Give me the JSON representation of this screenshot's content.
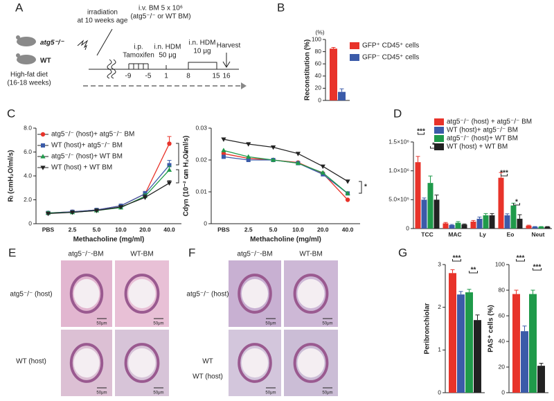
{
  "panel_labels": [
    "A",
    "B",
    "C",
    "D",
    "E",
    "F",
    "G"
  ],
  "schematic": {
    "irradiation": "irradiation",
    "irradiation_age": "at 10 weeks age",
    "iv": "i.v. BM 5 x 10⁶",
    "iv_note": "(atg5⁻/⁻ or WT BM)",
    "mouse_ko": "atg5⁻/⁻",
    "mouse_wt": "WT",
    "diet": "High-fat diet",
    "diet_duration": "(16-18 weeks)",
    "ip": "i.p.",
    "tamoxifen": "Tamoxifen",
    "hdm1": "i.n. HDM",
    "hdm1_dose": "50 μg",
    "hdm2": "i.n. HDM",
    "hdm2_dose": "10 μg",
    "harvest": "Harvest",
    "days": [
      "-9",
      "-5",
      "1",
      "8",
      "15",
      "16"
    ]
  },
  "chart_data": [
    {
      "type": "bar",
      "ylabel": "Reconstitution (%)",
      "unit_label": "(%)",
      "categories": [
        null
      ],
      "ylim": [
        0,
        100
      ],
      "yticks": [
        0,
        20,
        40,
        60,
        80,
        100
      ],
      "series": [
        {
          "name": "GFP⁺ CD45⁺ cells",
          "color": "#e8332a",
          "values": [
            85
          ],
          "errors": [
            2
          ]
        },
        {
          "name": "GFP⁻ CD45⁺ cells",
          "color": "#3b5ba9",
          "values": [
            14
          ],
          "errors": [
            5
          ]
        }
      ]
    },
    {
      "type": "line",
      "ylabel": "Rₗ (cmH₂O/ml/s)",
      "xlabel": "Methacholine (mg/ml)",
      "categories": [
        "PBS",
        "2.5",
        "5.0",
        "10.0",
        "20.0",
        "40.0"
      ],
      "ylim": [
        0,
        8
      ],
      "yticks": [
        0,
        {
          "value": 2,
          "label": "2.0"
        },
        {
          "value": 4,
          "label": "4.0"
        },
        {
          "value": 6,
          "label": "6.0"
        },
        {
          "value": 8,
          "label": "8.0"
        }
      ],
      "series": [
        {
          "name": "atg5⁻/⁻ (host)+ atg5⁻/⁻ BM",
          "color": "#e8332a",
          "marker": "circle",
          "values": [
            0.9,
            1.0,
            1.15,
            1.5,
            2.5,
            6.7
          ],
          "errors": [
            0.1,
            0.1,
            0.1,
            0.1,
            0.2,
            0.6
          ]
        },
        {
          "name": "WT (host)+ atg5⁻/⁻ BM",
          "color": "#3b5ba9",
          "marker": "square",
          "values": [
            0.9,
            1.0,
            1.15,
            1.5,
            2.5,
            4.9
          ],
          "errors": [
            0.1,
            0.1,
            0.1,
            0.1,
            0.2,
            0.4
          ]
        },
        {
          "name": "atg5⁻/⁻ (host)+ WT BM",
          "color": "#1f9a4a",
          "marker": "triangle-up",
          "values": [
            0.9,
            0.95,
            1.1,
            1.35,
            2.3,
            4.5
          ],
          "errors": [
            0.1,
            0.1,
            0.1,
            0.1,
            0.2,
            0.3
          ]
        },
        {
          "name": "WT (host) + WT BM",
          "color": "#222222",
          "marker": "triangle-down",
          "values": [
            0.85,
            0.95,
            1.1,
            1.4,
            2.2,
            3.4
          ],
          "errors": [
            0.1,
            0.1,
            0.1,
            0.1,
            0.2,
            0.2
          ]
        }
      ],
      "annotations": [
        "*",
        "*"
      ]
    },
    {
      "type": "line",
      "ylabel": "Cdyn (10⁻² cm H₂O/ml/s)",
      "xlabel": "Methacholine (mg/ml)",
      "categories": [
        "PBS",
        "2.5",
        "5.0",
        "10.0",
        "20.0",
        "40.0"
      ],
      "ylim": [
        0,
        0.03
      ],
      "yticks": [
        0,
        0.01,
        0.02,
        0.03
      ],
      "series": [
        {
          "color": "#e8332a",
          "marker": "circle",
          "values": [
            0.022,
            0.0205,
            0.02,
            0.0192,
            0.0158,
            0.0075
          ]
        },
        {
          "color": "#3b5ba9",
          "marker": "square",
          "values": [
            0.021,
            0.02,
            0.02,
            0.019,
            0.0155,
            0.0095
          ]
        },
        {
          "color": "#1f9a4a",
          "marker": "triangle-up",
          "values": [
            0.023,
            0.021,
            0.02,
            0.019,
            0.016,
            0.0095
          ]
        },
        {
          "color": "#222222",
          "marker": "triangle-down",
          "values": [
            0.0265,
            0.025,
            0.024,
            0.022,
            0.018,
            0.0133
          ]
        }
      ],
      "annotations": [
        "*"
      ]
    },
    {
      "type": "bar",
      "categories": [
        "TCC",
        "MAC",
        "Ly",
        "Eo",
        "Neut"
      ],
      "ylim": [
        0,
        1500000
      ],
      "yticks": [
        0,
        {
          "value": 500000,
          "label": "5.0×10⁵"
        },
        {
          "value": 1000000,
          "label": "1.0×10⁶"
        },
        {
          "value": 1500000,
          "label": "1.5×10⁶"
        }
      ],
      "series": [
        {
          "name": "atg5⁻/⁻ (host) + atg5⁻/⁻ BM",
          "color": "#e8332a",
          "values": [
            1150000,
            90000,
            120000,
            880000,
            50000
          ],
          "errors": [
            100000,
            15000,
            20000,
            90000,
            8000
          ]
        },
        {
          "name": "WT (host)+ atg5⁻/⁻ BM",
          "color": "#3b5ba9",
          "values": [
            500000,
            60000,
            170000,
            230000,
            30000
          ],
          "errors": [
            30000,
            10000,
            30000,
            25000,
            5000
          ]
        },
        {
          "name": "atg5⁻/⁻ (host)+ WT BM",
          "color": "#1f9a4a",
          "values": [
            790000,
            100000,
            230000,
            400000,
            30000
          ],
          "errors": [
            120000,
            20000,
            30000,
            40000,
            5000
          ]
        },
        {
          "name": "WT (host) + WT BM",
          "color": "#222222",
          "values": [
            500000,
            70000,
            230000,
            170000,
            30000
          ],
          "errors": [
            80000,
            10000,
            30000,
            70000,
            5000
          ]
        }
      ],
      "annotations": [
        "***",
        "*",
        "***",
        "*"
      ]
    },
    {
      "type": "bar",
      "ylabel": "Peribronchiolar",
      "categories": [
        null
      ],
      "ylim": [
        0,
        3
      ],
      "yticks": [
        0,
        1,
        2,
        3
      ],
      "series": [
        {
          "color": "#e8332a",
          "values": [
            2.8
          ],
          "errors": [
            0.08
          ]
        },
        {
          "color": "#3b5ba9",
          "values": [
            2.3
          ],
          "errors": [
            0.07
          ]
        },
        {
          "color": "#1f9a4a",
          "values": [
            2.35
          ],
          "errors": [
            0.07
          ]
        },
        {
          "color": "#222222",
          "values": [
            1.7
          ],
          "errors": [
            0.12
          ]
        }
      ],
      "annotations": [
        "***",
        "**"
      ]
    },
    {
      "type": "bar",
      "ylabel": "PAS⁺ cells (%)",
      "categories": [
        null
      ],
      "ylim": [
        0,
        100
      ],
      "yticks": [
        0,
        20,
        40,
        60,
        80,
        100
      ],
      "series": [
        {
          "color": "#e8332a",
          "values": [
            77
          ],
          "errors": [
            3
          ]
        },
        {
          "color": "#3b5ba9",
          "values": [
            48
          ],
          "errors": [
            4
          ]
        },
        {
          "color": "#1f9a4a",
          "values": [
            77
          ],
          "errors": [
            3
          ]
        },
        {
          "color": "#222222",
          "values": [
            21
          ],
          "errors": [
            2
          ]
        }
      ],
      "annotations": [
        "***",
        "***"
      ]
    }
  ],
  "histology": [
    {
      "columns": [
        "atg5⁻/⁻-BM",
        "WT-BM"
      ],
      "rows": [
        "atg5⁻/⁻ (host)",
        "WT (host)"
      ]
    },
    {
      "columns": [
        "atg5⁻/⁻-BM",
        "WT-BM"
      ],
      "rows": [
        "atg5⁻/⁻ (host)",
        "WT",
        "WT (host)"
      ]
    }
  ],
  "scale_bar": "50μm"
}
